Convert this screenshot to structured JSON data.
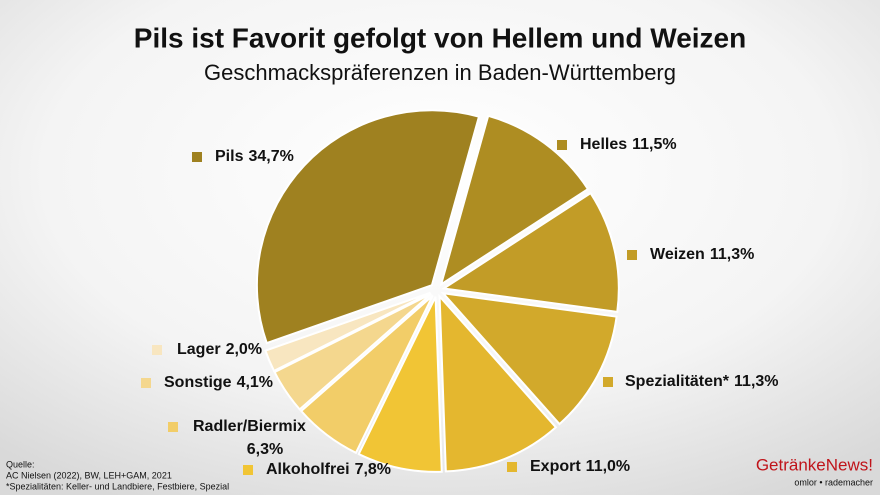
{
  "chart_data": {
    "type": "pie",
    "title": "Pils ist Favorit gefolgt von Hellem und Weizen",
    "subtitle": "Geschmackspräferenzen in Baden-Württemberg",
    "categories": [
      "Helles",
      "Weizen",
      "Spezialitäten*",
      "Export",
      "Alkoholfrei",
      "Radler/Biermix",
      "Sonstige",
      "Lager",
      "Pils"
    ],
    "values": [
      11.5,
      11.3,
      11.3,
      11.0,
      7.8,
      6.3,
      4.1,
      2.0,
      34.7
    ],
    "value_labels": [
      "11,5%",
      "11,3%",
      "11,3%",
      "11,0%",
      "7,8%",
      "6,3%",
      "4,1%",
      "2,0%",
      "34,7%"
    ],
    "colors": [
      "#ae8d22",
      "#c29c27",
      "#d2a92b",
      "#e4b72f",
      "#f1c535",
      "#f2cd68",
      "#f4d78e",
      "#f8e6c0",
      "#9f8120"
    ],
    "source": [
      "Quelle:",
      "AC Nielsen (2022), BW, LEH+GAM, 2021",
      "*Spezialitäten: Keller- und Landbiere, Festbiere, Spezial"
    ],
    "logo": {
      "name": "GetränkeNews!",
      "tagline": "omlor • rademacher"
    }
  }
}
